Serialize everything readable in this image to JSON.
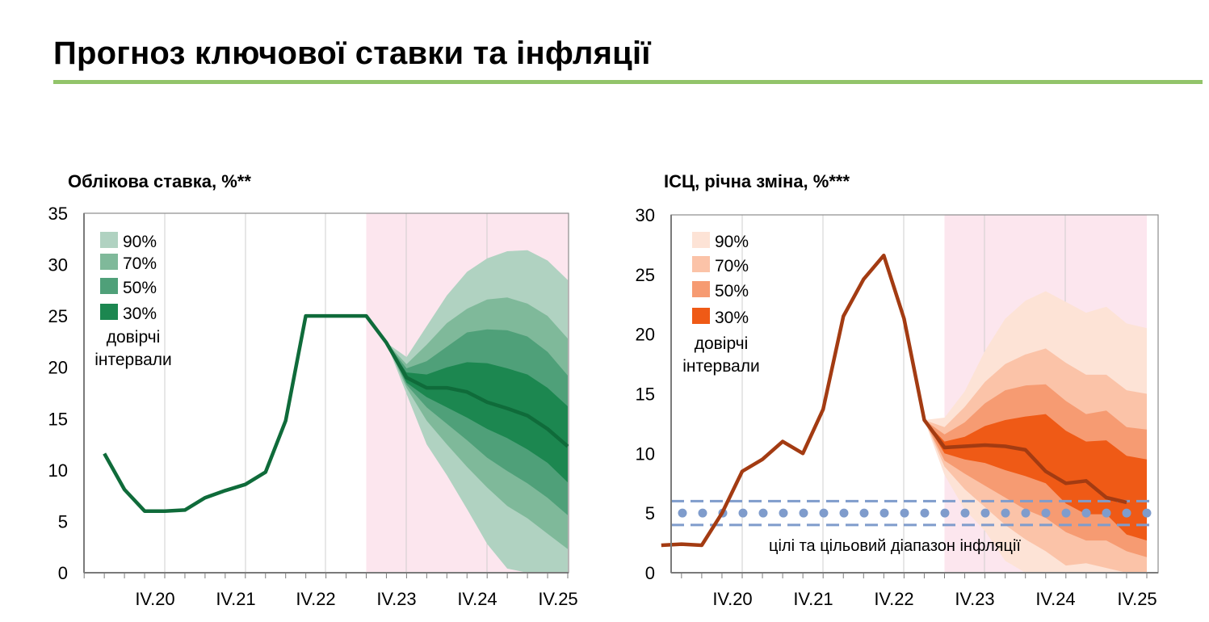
{
  "page": {
    "title": "Прогноз ключової ставки та інфляції",
    "accent_color": "#92c46a"
  },
  "chart_data": [
    {
      "type": "area",
      "title": "Облікова ставка, %**",
      "x_ticks": [
        "IV.20",
        "IV.21",
        "IV.22",
        "IV.23",
        "IV.24",
        "IV.25"
      ],
      "ylim": [
        0,
        35
      ],
      "y_ticks": [
        0,
        5,
        10,
        15,
        20,
        25,
        30,
        35
      ],
      "grid": "vertical",
      "forecast_shading": {
        "from_quarter": 22.5,
        "to_quarter": 25.25,
        "color": "#fce6ee"
      },
      "legend": {
        "placement": "top-left",
        "items": [
          "90%",
          "70%",
          "50%",
          "30%"
        ],
        "note": "довірчі інтервали"
      },
      "series": [
        {
          "name": "",
          "color": "#0f6b3a",
          "points": [
            [
              19.25,
              11.6
            ],
            [
              19.5,
              8.1
            ],
            [
              19.75,
              6.0
            ],
            [
              20.0,
              6.0
            ],
            [
              20.25,
              6.1
            ],
            [
              20.5,
              7.3
            ],
            [
              20.75,
              8.0
            ],
            [
              21.0,
              8.6
            ],
            [
              21.25,
              9.8
            ],
            [
              21.5,
              14.8
            ],
            [
              21.75,
              25.0
            ],
            [
              22.0,
              25.0
            ],
            [
              22.25,
              25.0
            ],
            [
              22.5,
              25.0
            ],
            [
              22.75,
              22.4
            ],
            [
              23.0,
              19.0
            ],
            [
              23.25,
              18.0
            ],
            [
              23.5,
              18.0
            ],
            [
              23.75,
              17.6
            ],
            [
              24.0,
              16.6
            ],
            [
              24.25,
              16.0
            ],
            [
              24.5,
              15.3
            ],
            [
              24.75,
              14.0
            ],
            [
              25.0,
              12.3
            ]
          ]
        }
      ],
      "fan": {
        "x": [
          22.75,
          23.0,
          23.25,
          23.5,
          23.75,
          24.0,
          24.25,
          24.5,
          24.75,
          25.0
        ],
        "bands": [
          {
            "name": "90%",
            "color": "#b0d2c1",
            "upper": [
              22.4,
              21.0,
              24.0,
              27.0,
              29.3,
              30.6,
              31.3,
              31.4,
              30.4,
              28.5
            ],
            "lower": [
              22.4,
              17.4,
              12.5,
              9.5,
              6.2,
              2.8,
              0.4,
              0,
              0,
              0
            ]
          },
          {
            "name": "70%",
            "color": "#7fb99a",
            "upper": [
              22.4,
              20.3,
              22.2,
              24.3,
              25.7,
              26.6,
              26.8,
              26.2,
              25.0,
              22.8
            ],
            "lower": [
              22.4,
              18.0,
              14.8,
              12.5,
              10.3,
              8.3,
              6.5,
              5.3,
              3.8,
              2.3
            ]
          },
          {
            "name": "50%",
            "color": "#4fa079",
            "upper": [
              22.4,
              19.9,
              20.6,
              22.0,
              23.4,
              23.7,
              23.6,
              23.0,
              21.5,
              19.2
            ],
            "lower": [
              22.4,
              18.3,
              16.1,
              14.5,
              12.9,
              11.2,
              9.9,
              8.7,
              7.3,
              5.6
            ]
          },
          {
            "name": "30%",
            "color": "#1c8750",
            "upper": [
              22.4,
              19.5,
              19.3,
              20.0,
              20.5,
              20.4,
              19.9,
              19.3,
              18.0,
              16.2
            ],
            "lower": [
              22.4,
              18.5,
              17.1,
              16.1,
              15.1,
              14.0,
              13.1,
              12.0,
              10.7,
              8.8
            ]
          }
        ]
      }
    },
    {
      "type": "area",
      "title": "ІСЦ, річна зміна, %***",
      "x_ticks": [
        "IV.20",
        "IV.21",
        "IV.22",
        "IV.23",
        "IV.24",
        "IV.25"
      ],
      "ylim": [
        0,
        30
      ],
      "y_ticks": [
        0,
        5,
        10,
        15,
        20,
        25,
        30
      ],
      "grid": "vertical",
      "forecast_shading": {
        "from_quarter": 22.5,
        "to_quarter": 25.0,
        "color": "#fce6ee"
      },
      "legend": {
        "placement": "top-left",
        "items": [
          "90%",
          "70%",
          "50%",
          "30%"
        ],
        "note": "довірчі інтервали"
      },
      "annotation": "цілі та цільовий діапазон інфляції",
      "target": {
        "value": 5,
        "range": [
          4,
          6
        ],
        "color": "#7f9ccc"
      },
      "series": [
        {
          "name": "",
          "color": "#a33b12",
          "points": [
            [
              19.0,
              2.3
            ],
            [
              19.25,
              2.4
            ],
            [
              19.5,
              2.3
            ],
            [
              19.75,
              5.0
            ],
            [
              20.0,
              8.5
            ],
            [
              20.25,
              9.5
            ],
            [
              20.5,
              11.0
            ],
            [
              20.75,
              10.0
            ],
            [
              21.0,
              13.7
            ],
            [
              21.25,
              21.5
            ],
            [
              21.5,
              24.6
            ],
            [
              21.75,
              26.6
            ],
            [
              22.0,
              21.3
            ],
            [
              22.25,
              12.8
            ],
            [
              22.5,
              10.5
            ],
            [
              22.75,
              10.6
            ],
            [
              23.0,
              10.7
            ],
            [
              23.25,
              10.6
            ],
            [
              23.5,
              10.3
            ],
            [
              23.75,
              8.5
            ],
            [
              24.0,
              7.5
            ],
            [
              24.25,
              7.7
            ],
            [
              24.5,
              6.3
            ],
            [
              24.75,
              5.9
            ]
          ]
        }
      ],
      "fan": {
        "x": [
          22.25,
          22.5,
          22.75,
          23.0,
          23.25,
          23.5,
          23.75,
          24.0,
          24.25,
          24.5,
          24.75,
          25.0
        ],
        "bands": [
          {
            "name": "90%",
            "color": "#fde3d6",
            "upper": [
              12.8,
              13.0,
              15.2,
              18.6,
              21.3,
              22.8,
              23.6,
              22.7,
              21.8,
              22.3,
              20.9,
              20.5
            ],
            "lower": [
              12.8,
              8.2,
              5.3,
              3.5,
              1.0,
              0,
              0,
              0,
              0,
              0,
              0,
              0
            ]
          },
          {
            "name": "70%",
            "color": "#fbc3a8",
            "upper": [
              12.8,
              12.2,
              13.9,
              16.0,
              17.5,
              18.3,
              18.8,
              17.6,
              16.6,
              16.6,
              15.3,
              15.0
            ],
            "lower": [
              12.8,
              8.9,
              7.0,
              5.5,
              4.0,
              2.8,
              1.8,
              0.6,
              0.8,
              0.4,
              0,
              0
            ]
          },
          {
            "name": "50%",
            "color": "#f69b72",
            "upper": [
              12.8,
              11.6,
              12.6,
              14.2,
              15.3,
              15.7,
              15.8,
              14.4,
              13.3,
              13.6,
              12.2,
              12.0
            ],
            "lower": [
              12.8,
              9.4,
              8.3,
              7.3,
              6.3,
              5.3,
              4.6,
              3.4,
              2.7,
              2.7,
              1.8,
              1.3
            ]
          },
          {
            "name": "30%",
            "color": "#ef5a16",
            "upper": [
              12.8,
              11.0,
              11.4,
              12.3,
              12.8,
              13.1,
              13.3,
              11.9,
              11.0,
              11.1,
              9.8,
              9.5
            ],
            "lower": [
              12.8,
              10.0,
              9.5,
              9.2,
              8.6,
              8.1,
              7.5,
              5.8,
              4.9,
              4.9,
              3.2,
              2.7
            ]
          }
        ]
      }
    }
  ]
}
